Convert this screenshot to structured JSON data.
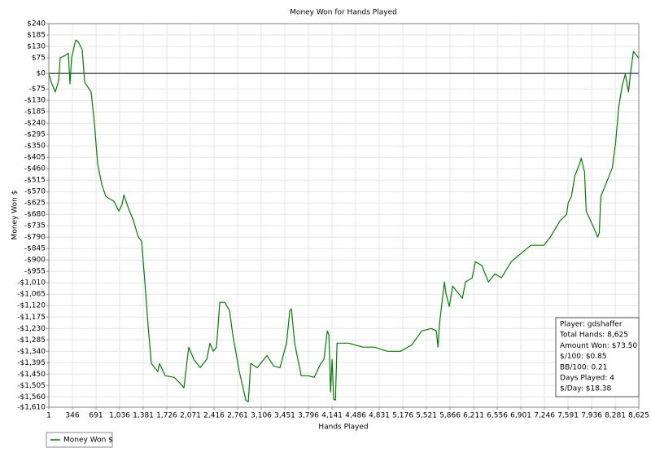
{
  "chart_data": {
    "type": "line",
    "title": "Money Won for Hands Played",
    "x_label": "Hands Played",
    "y_label": "Money Won $",
    "xlim": [
      1,
      8625
    ],
    "ylim": [
      -1610,
      240
    ],
    "xticks": [
      1,
      346,
      691,
      {
        "value": 1036,
        "label": "1,036"
      },
      {
        "value": 1381,
        "label": "1,381"
      },
      {
        "value": 1726,
        "label": "1,726"
      },
      {
        "value": 2071,
        "label": "2,071"
      },
      {
        "value": 2416,
        "label": "2,416"
      },
      {
        "value": 2761,
        "label": "2,761"
      },
      {
        "value": 3106,
        "label": "3,106"
      },
      {
        "value": 3451,
        "label": "3,451"
      },
      {
        "value": 3796,
        "label": "3,796"
      },
      {
        "value": 4141,
        "label": "4,141"
      },
      {
        "value": 4486,
        "label": "4,486"
      },
      {
        "value": 4831,
        "label": "4,831"
      },
      {
        "value": 5176,
        "label": "5,176"
      },
      {
        "value": 5521,
        "label": "5,521"
      },
      {
        "value": 5866,
        "label": "5,866"
      },
      {
        "value": 6211,
        "label": "6,211"
      },
      {
        "value": 6556,
        "label": "6,556"
      },
      {
        "value": 6901,
        "label": "6,901"
      },
      {
        "value": 7246,
        "label": "7,246"
      },
      {
        "value": 7591,
        "label": "7,591"
      },
      {
        "value": 7936,
        "label": "7,936"
      },
      {
        "value": 8281,
        "label": "8,281"
      },
      {
        "value": 8625,
        "label": "8,625"
      }
    ],
    "yticks": [
      {
        "value": 240,
        "label": "$240"
      },
      {
        "value": 185,
        "label": "$185"
      },
      {
        "value": 130,
        "label": "$130"
      },
      {
        "value": 75,
        "label": "$75"
      },
      {
        "value": 0,
        "label": "$0"
      },
      {
        "value": -75,
        "label": "-$75"
      },
      {
        "value": -130,
        "label": "-$130"
      },
      {
        "value": -185,
        "label": "-$185"
      },
      {
        "value": -240,
        "label": "-$240"
      },
      {
        "value": -295,
        "label": "-$295"
      },
      {
        "value": -350,
        "label": "-$350"
      },
      {
        "value": -405,
        "label": "-$405"
      },
      {
        "value": -460,
        "label": "-$460"
      },
      {
        "value": -515,
        "label": "-$515"
      },
      {
        "value": -570,
        "label": "-$570"
      },
      {
        "value": -625,
        "label": "-$625"
      },
      {
        "value": -680,
        "label": "-$680"
      },
      {
        "value": -735,
        "label": "-$735"
      },
      {
        "value": -790,
        "label": "-$790"
      },
      {
        "value": -845,
        "label": "-$845"
      },
      {
        "value": -900,
        "label": "-$900"
      },
      {
        "value": -955,
        "label": "-$955"
      },
      {
        "value": -1010,
        "label": "-$1,010"
      },
      {
        "value": -1065,
        "label": "-$1,065"
      },
      {
        "value": -1120,
        "label": "-$1,120"
      },
      {
        "value": -1175,
        "label": "-$1,175"
      },
      {
        "value": -1230,
        "label": "-$1,230"
      },
      {
        "value": -1285,
        "label": "-$1,285"
      },
      {
        "value": -1340,
        "label": "-$1,340"
      },
      {
        "value": -1395,
        "label": "-$1,395"
      },
      {
        "value": -1450,
        "label": "-$1,450"
      },
      {
        "value": -1505,
        "label": "-$1,505"
      },
      {
        "value": -1560,
        "label": "-$1,560"
      },
      {
        "value": -1610,
        "label": "-$1,610"
      }
    ],
    "grid": true,
    "x": [
      1,
      37,
      96,
      144,
      168,
      239,
      287,
      310,
      334,
      394,
      429,
      489,
      525,
      620,
      667,
      715,
      774,
      834,
      953,
      1024,
      1072,
      1096,
      1167,
      1238,
      1310,
      1357,
      1405,
      1453,
      1500,
      1595,
      1619,
      1702,
      1833,
      1928,
      1976,
      2024,
      2047,
      2119,
      2214,
      2309,
      2357,
      2405,
      2452,
      2500,
      2571,
      2643,
      2690,
      2786,
      2881,
      2916,
      2952,
      3047,
      3190,
      3285,
      3381,
      3476,
      3524,
      3547,
      3595,
      3690,
      3785,
      3880,
      3976,
      4023,
      4071,
      4095,
      4119,
      4142,
      4166,
      4190,
      4214,
      4380,
      4594,
      4761,
      4951,
      5142,
      5308,
      5451,
      5594,
      5666,
      5689,
      5713,
      5784,
      5808,
      5856,
      5903,
      6046,
      6093,
      6189,
      6236,
      6332,
      6427,
      6522,
      6617,
      6760,
      6903,
      7046,
      7236,
      7331,
      7474,
      7570,
      7593,
      7641,
      7689,
      7760,
      7784,
      7832,
      7856,
      7975,
      8023,
      8047,
      8071,
      8166,
      8237,
      8285,
      8332,
      8380,
      8428,
      8475,
      8499,
      8547,
      8625
    ],
    "series": [
      {
        "name": "Money Won $",
        "color": "#008000",
        "values": [
          0,
          -43,
          -90,
          -35,
          75,
          86,
          98,
          -51,
          75,
          161,
          153,
          114,
          -43,
          -90,
          -240,
          -436,
          -534,
          -593,
          -617,
          -664,
          -633,
          -586,
          -652,
          -711,
          -790,
          -809,
          -1006,
          -1222,
          -1399,
          -1438,
          -1399,
          -1458,
          -1466,
          -1497,
          -1517,
          -1379,
          -1320,
          -1379,
          -1419,
          -1379,
          -1301,
          -1340,
          -1320,
          -1104,
          -1104,
          -1144,
          -1262,
          -1438,
          -1576,
          -1584,
          -1399,
          -1419,
          -1360,
          -1411,
          -1419,
          -1301,
          -1144,
          -1136,
          -1301,
          -1458,
          -1458,
          -1466,
          -1399,
          -1379,
          -1242,
          -1262,
          -1537,
          -1379,
          -1572,
          -1576,
          -1301,
          -1301,
          -1320,
          -1320,
          -1340,
          -1340,
          -1309,
          -1242,
          -1230,
          -1242,
          -1320,
          -1203,
          -1006,
          -1065,
          -1124,
          -1026,
          -1085,
          -1006,
          -986,
          -908,
          -927,
          -1006,
          -967,
          -986,
          -908,
          -869,
          -829,
          -829,
          -790,
          -711,
          -680,
          -625,
          -593,
          -495,
          -436,
          -409,
          -476,
          -664,
          -751,
          -790,
          -770,
          -593,
          -515,
          -456,
          -338,
          -161,
          -63,
          -4,
          -90,
          -12,
          106,
          73.5
        ]
      }
    ]
  },
  "info_box": [
    "Player: gdshaffer",
    "Total Hands: 8,625",
    "Amount Won: $73.50",
    "$/100: $0.85",
    "BB/100: 0.21",
    "Days Played: 4",
    "$/Day: $18.38"
  ]
}
